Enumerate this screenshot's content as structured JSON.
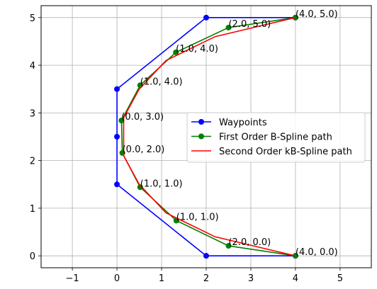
{
  "chart_data": {
    "type": "line",
    "title": "",
    "xlabel": "",
    "ylabel": "",
    "xlim": [
      -1.7,
      5.7
    ],
    "ylim": [
      -0.25,
      5.25
    ],
    "xticks": [
      -1,
      0,
      1,
      2,
      3,
      4,
      5
    ],
    "yticks": [
      0,
      1,
      2,
      3,
      4,
      5
    ],
    "x_tick_labels": [
      "−1",
      "0",
      "1",
      "2",
      "3",
      "4",
      "5"
    ],
    "y_tick_labels": [
      "0",
      "1",
      "2",
      "3",
      "4",
      "5"
    ],
    "grid": true,
    "legend_position": "center-right",
    "series": [
      {
        "name": "Waypoints",
        "color": "#0000ff",
        "marker": "circle",
        "x": [
          4,
          2,
          0,
          0,
          0,
          2,
          4
        ],
        "y": [
          0,
          0,
          1.5,
          2.5,
          3.5,
          5,
          5
        ]
      },
      {
        "name": "First Order B-Spline path",
        "color": "#008000",
        "marker": "circle",
        "x": [
          4,
          2.5,
          1.33,
          0.52,
          0.12,
          0.1,
          0.52,
          1.32,
          2.5,
          4
        ],
        "y": [
          0,
          0.21,
          0.74,
          1.44,
          2.16,
          2.84,
          3.58,
          4.27,
          4.79,
          5
        ]
      },
      {
        "name": "Second Order kB-Spline path",
        "color": "#ff0000",
        "marker": "none",
        "x": [
          4,
          2.2,
          1.1,
          0.5,
          0.15,
          0.15,
          0.5,
          1.1,
          2.2,
          4
        ],
        "y": [
          0,
          0.4,
          0.9,
          1.5,
          2.1,
          2.9,
          3.5,
          4.1,
          4.6,
          5
        ]
      }
    ],
    "annotations": [
      {
        "text": "(4.0, 0.0)",
        "x": 4,
        "y": 0
      },
      {
        "text": "(2.0, 0.0)",
        "x": 2.5,
        "y": 0.21
      },
      {
        "text": "(1.0, 1.0)",
        "x": 1.33,
        "y": 0.74
      },
      {
        "text": "(1.0, 1.0)",
        "x": 0.52,
        "y": 1.44
      },
      {
        "text": "(0.0, 2.0)",
        "x": 0.12,
        "y": 2.16
      },
      {
        "text": "(0.0, 3.0)",
        "x": 0.1,
        "y": 2.84
      },
      {
        "text": "(1.0, 4.0)",
        "x": 0.52,
        "y": 3.58
      },
      {
        "text": "(1.0, 4.0)",
        "x": 1.32,
        "y": 4.27
      },
      {
        "text": "(2.0, 5.0)",
        "x": 2.5,
        "y": 4.79
      },
      {
        "text": "(4.0, 5.0)",
        "x": 4,
        "y": 5
      }
    ]
  }
}
